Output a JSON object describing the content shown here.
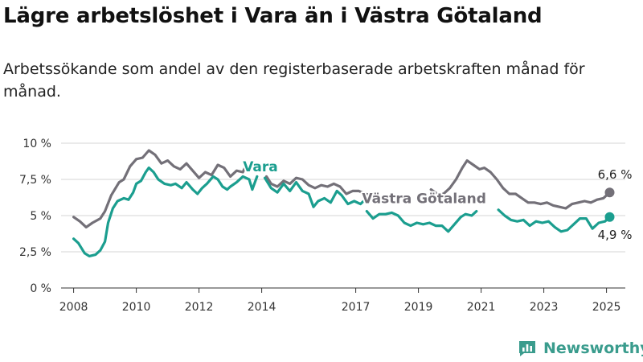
{
  "header": {
    "title": "Lägre arbetslöshet i Vara än i Västra Götaland",
    "subtitle": "Arbetssökande som andel av den registerbaserade arbetskraften månad för månad."
  },
  "brand": {
    "name": "Newsworthy",
    "logo_icon": "bar-chart-logo-icon",
    "color": "#3a9c8d"
  },
  "chart_data": {
    "type": "line",
    "x_unit": "year (decimal)",
    "y_unit": "percent",
    "xlim": [
      2007.6,
      2025.6
    ],
    "ylim": [
      0,
      10
    ],
    "x_ticks": [
      2008,
      2010,
      2012,
      2014,
      2017,
      2019,
      2021,
      2023,
      2025
    ],
    "x_tick_labels": [
      "2008",
      "2010",
      "2012",
      "2014",
      "2017",
      "2019",
      "2021",
      "2023",
      "2025"
    ],
    "y_ticks": [
      0,
      2.5,
      5,
      7.5,
      10
    ],
    "y_tick_labels": [
      "0 %",
      "2,5 %",
      "5 %",
      "7,5 %",
      "10 %"
    ],
    "grid": "horizontal",
    "series": [
      {
        "name": "Västra Götaland",
        "color": "#737078",
        "end_label": "6,6 %",
        "points": [
          [
            2008.0,
            4.9
          ],
          [
            2008.2,
            4.6
          ],
          [
            2008.4,
            4.2
          ],
          [
            2008.6,
            4.5
          ],
          [
            2008.85,
            4.8
          ],
          [
            2009.0,
            5.3
          ],
          [
            2009.2,
            6.4
          ],
          [
            2009.45,
            7.3
          ],
          [
            2009.6,
            7.5
          ],
          [
            2009.8,
            8.4
          ],
          [
            2010.0,
            8.9
          ],
          [
            2010.2,
            9.0
          ],
          [
            2010.4,
            9.5
          ],
          [
            2010.6,
            9.2
          ],
          [
            2010.8,
            8.6
          ],
          [
            2011.0,
            8.8
          ],
          [
            2011.2,
            8.4
          ],
          [
            2011.4,
            8.2
          ],
          [
            2011.6,
            8.6
          ],
          [
            2011.8,
            8.1
          ],
          [
            2012.0,
            7.6
          ],
          [
            2012.2,
            8.0
          ],
          [
            2012.4,
            7.8
          ],
          [
            2012.6,
            8.5
          ],
          [
            2012.8,
            8.3
          ],
          [
            2013.0,
            7.7
          ],
          [
            2013.2,
            8.1
          ],
          [
            2013.4,
            8.0
          ],
          [
            2013.5,
            8.5
          ]
        ]
      },
      {
        "name": "Västra Götaland",
        "color": "#737078",
        "end_label": "6,6 %",
        "points": [
          [
            2014.15,
            7.7
          ],
          [
            2014.3,
            7.2
          ],
          [
            2014.5,
            7.0
          ],
          [
            2014.7,
            7.4
          ],
          [
            2014.9,
            7.2
          ],
          [
            2015.1,
            7.6
          ],
          [
            2015.3,
            7.5
          ],
          [
            2015.5,
            7.1
          ],
          [
            2015.7,
            6.9
          ],
          [
            2015.9,
            7.1
          ],
          [
            2016.1,
            7.0
          ],
          [
            2016.3,
            7.2
          ],
          [
            2016.5,
            7.0
          ],
          [
            2016.7,
            6.5
          ],
          [
            2016.9,
            6.7
          ],
          [
            2017.1,
            6.7
          ],
          [
            2017.3,
            6.5
          ],
          [
            2017.5,
            6.4
          ]
        ]
      },
      {
        "name": "Västra Götaland",
        "color": "#737078",
        "end_label": "6,6 %",
        "points": [
          [
            2019.4,
            6.8
          ],
          [
            2019.6,
            6.5
          ],
          [
            2019.8,
            6.5
          ],
          [
            2020.0,
            6.9
          ],
          [
            2020.2,
            7.5
          ],
          [
            2020.4,
            8.3
          ],
          [
            2020.55,
            8.8
          ],
          [
            2020.75,
            8.5
          ],
          [
            2020.95,
            8.2
          ],
          [
            2021.1,
            8.3
          ],
          [
            2021.3,
            8.0
          ],
          [
            2021.5,
            7.5
          ],
          [
            2021.7,
            6.9
          ],
          [
            2021.9,
            6.5
          ],
          [
            2022.1,
            6.5
          ],
          [
            2022.3,
            6.2
          ],
          [
            2022.5,
            5.9
          ],
          [
            2022.7,
            5.9
          ],
          [
            2022.9,
            5.8
          ],
          [
            2023.1,
            5.9
          ],
          [
            2023.3,
            5.7
          ],
          [
            2023.5,
            5.6
          ],
          [
            2023.7,
            5.5
          ],
          [
            2023.9,
            5.8
          ],
          [
            2024.1,
            5.9
          ],
          [
            2024.3,
            6.0
          ],
          [
            2024.5,
            5.9
          ],
          [
            2024.7,
            6.1
          ],
          [
            2024.9,
            6.2
          ],
          [
            2025.1,
            6.6
          ]
        ]
      },
      {
        "name": "Vara",
        "color": "#1b9e8f",
        "end_label": "4,9 %",
        "points": [
          [
            2008.0,
            3.4
          ],
          [
            2008.15,
            3.1
          ],
          [
            2008.35,
            2.4
          ],
          [
            2008.5,
            2.2
          ],
          [
            2008.7,
            2.3
          ],
          [
            2008.85,
            2.6
          ],
          [
            2009.0,
            3.2
          ],
          [
            2009.1,
            4.5
          ],
          [
            2009.25,
            5.5
          ],
          [
            2009.4,
            6.0
          ],
          [
            2009.6,
            6.2
          ],
          [
            2009.75,
            6.1
          ],
          [
            2009.9,
            6.6
          ],
          [
            2010.0,
            7.2
          ],
          [
            2010.15,
            7.4
          ],
          [
            2010.3,
            8.0
          ],
          [
            2010.4,
            8.3
          ],
          [
            2010.55,
            8.0
          ],
          [
            2010.7,
            7.5
          ],
          [
            2010.9,
            7.2
          ],
          [
            2011.1,
            7.1
          ],
          [
            2011.25,
            7.2
          ],
          [
            2011.45,
            6.9
          ],
          [
            2011.6,
            7.3
          ],
          [
            2011.8,
            6.8
          ],
          [
            2011.95,
            6.5
          ],
          [
            2012.1,
            6.9
          ],
          [
            2012.25,
            7.2
          ],
          [
            2012.45,
            7.7
          ],
          [
            2012.6,
            7.5
          ],
          [
            2012.75,
            7.0
          ],
          [
            2012.9,
            6.8
          ],
          [
            2013.0,
            7.0
          ],
          [
            2013.2,
            7.3
          ],
          [
            2013.4,
            7.7
          ],
          [
            2013.6,
            7.5
          ],
          [
            2013.7,
            6.8
          ],
          [
            2013.85,
            7.7
          ]
        ]
      },
      {
        "name": "Vara",
        "color": "#1b9e8f",
        "end_label": "4,9 %",
        "points": [
          [
            2014.1,
            7.6
          ],
          [
            2014.3,
            6.9
          ],
          [
            2014.5,
            6.6
          ],
          [
            2014.7,
            7.2
          ],
          [
            2014.9,
            6.7
          ],
          [
            2015.1,
            7.3
          ],
          [
            2015.3,
            6.7
          ],
          [
            2015.5,
            6.5
          ],
          [
            2015.65,
            5.6
          ],
          [
            2015.8,
            6.0
          ],
          [
            2016.0,
            6.2
          ],
          [
            2016.2,
            5.9
          ],
          [
            2016.4,
            6.7
          ],
          [
            2016.55,
            6.4
          ],
          [
            2016.75,
            5.8
          ],
          [
            2016.95,
            6.0
          ],
          [
            2017.15,
            5.8
          ],
          [
            2017.3,
            6.1
          ]
        ]
      },
      {
        "name": "Vara",
        "color": "#1b9e8f",
        "end_label": "4,9 %",
        "points": [
          [
            2017.35,
            5.3
          ],
          [
            2017.55,
            4.8
          ],
          [
            2017.75,
            5.1
          ],
          [
            2017.95,
            5.1
          ],
          [
            2018.15,
            5.2
          ],
          [
            2018.35,
            5.0
          ],
          [
            2018.55,
            4.5
          ],
          [
            2018.75,
            4.3
          ],
          [
            2018.95,
            4.5
          ],
          [
            2019.15,
            4.4
          ],
          [
            2019.35,
            4.5
          ],
          [
            2019.55,
            4.3
          ],
          [
            2019.75,
            4.3
          ],
          [
            2019.95,
            3.9
          ],
          [
            2020.15,
            4.4
          ],
          [
            2020.35,
            4.9
          ],
          [
            2020.5,
            5.1
          ],
          [
            2020.7,
            5.0
          ],
          [
            2020.85,
            5.3
          ]
        ]
      },
      {
        "name": "Vara",
        "color": "#1b9e8f",
        "end_label": "4,9 %",
        "points": [
          [
            2021.55,
            5.4
          ],
          [
            2021.75,
            5.0
          ],
          [
            2021.95,
            4.7
          ],
          [
            2022.15,
            4.6
          ],
          [
            2022.35,
            4.7
          ],
          [
            2022.55,
            4.3
          ],
          [
            2022.75,
            4.6
          ],
          [
            2022.95,
            4.5
          ],
          [
            2023.15,
            4.6
          ],
          [
            2023.35,
            4.2
          ],
          [
            2023.55,
            3.9
          ],
          [
            2023.75,
            4.0
          ],
          [
            2023.95,
            4.4
          ],
          [
            2024.15,
            4.8
          ],
          [
            2024.35,
            4.8
          ],
          [
            2024.55,
            4.1
          ],
          [
            2024.75,
            4.5
          ],
          [
            2024.95,
            4.6
          ],
          [
            2025.1,
            4.9
          ]
        ]
      }
    ],
    "series_labels": [
      {
        "text": "Vara",
        "series": "Vara",
        "x": 2013.4,
        "y": 8.05
      },
      {
        "text": "Västra Götaland",
        "series": "Västra Götaland",
        "x": 2017.2,
        "y": 5.85
      }
    ],
    "end_markers": [
      {
        "series": "Västra Götaland",
        "x": 2025.1,
        "y": 6.6,
        "label": "6,6 %"
      },
      {
        "series": "Vara",
        "x": 2025.1,
        "y": 4.9,
        "label": "4,9 %"
      }
    ]
  }
}
